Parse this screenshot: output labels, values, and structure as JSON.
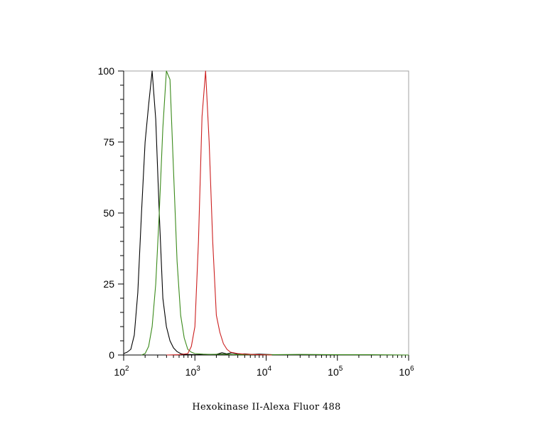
{
  "chart_data": {
    "type": "line",
    "title": "",
    "xlabel": "Hexokinase II-Alexa Fluor 488",
    "ylabel": "",
    "x_scale": "log",
    "xlim": [
      100,
      1000000
    ],
    "ylim": [
      0,
      100
    ],
    "grid": false,
    "legend": "none",
    "x_ticks": [
      {
        "value": 100,
        "base": "10",
        "exp": "2"
      },
      {
        "value": 1000,
        "base": "10",
        "exp": "3"
      },
      {
        "value": 10000,
        "base": "10",
        "exp": "4"
      },
      {
        "value": 100000,
        "base": "10",
        "exp": "5"
      },
      {
        "value": 1000000,
        "base": "10",
        "exp": "6"
      }
    ],
    "y_ticks": [
      {
        "value": 0,
        "label": "0"
      },
      {
        "value": 25,
        "label": "25"
      },
      {
        "value": 50,
        "label": "50"
      },
      {
        "value": 75,
        "label": "75"
      },
      {
        "value": 100,
        "label": "100"
      }
    ],
    "series": [
      {
        "color": "#000000",
        "points": [
          [
            100,
            0.5
          ],
          [
            112,
            1
          ],
          [
            126,
            2
          ],
          [
            141,
            7
          ],
          [
            158,
            22
          ],
          [
            178,
            50
          ],
          [
            200,
            75
          ],
          [
            224,
            88
          ],
          [
            251,
            100
          ],
          [
            282,
            83
          ],
          [
            316,
            50
          ],
          [
            355,
            20
          ],
          [
            398,
            10
          ],
          [
            447,
            5
          ],
          [
            501,
            2.5
          ],
          [
            562,
            1.2
          ],
          [
            631,
            0.5
          ],
          [
            708,
            0.2
          ],
          [
            1000,
            0.1
          ],
          [
            2000,
            0.2
          ],
          [
            2400,
            0.8
          ],
          [
            2800,
            0.4
          ],
          [
            3300,
            0.8
          ],
          [
            4000,
            0.3
          ],
          [
            5000,
            0.4
          ],
          [
            6300,
            0.2
          ],
          [
            8000,
            0.3
          ],
          [
            10000,
            0.2
          ],
          [
            13000,
            0.1
          ],
          [
            20000,
            0
          ]
        ]
      },
      {
        "color": "#3a8a1a",
        "points": [
          [
            178,
            0
          ],
          [
            200,
            0.5
          ],
          [
            224,
            3
          ],
          [
            251,
            10
          ],
          [
            282,
            25
          ],
          [
            316,
            50
          ],
          [
            355,
            80
          ],
          [
            398,
            100
          ],
          [
            447,
            97
          ],
          [
            501,
            65
          ],
          [
            562,
            33
          ],
          [
            631,
            14
          ],
          [
            708,
            6
          ],
          [
            794,
            2
          ],
          [
            891,
            1
          ],
          [
            1000,
            0.5
          ],
          [
            1300,
            0.3
          ],
          [
            1600,
            0.2
          ],
          [
            2500,
            0.3
          ],
          [
            4000,
            0.1
          ],
          [
            10000,
            0.1
          ],
          [
            30000,
            0.2
          ],
          [
            100000,
            0.1
          ],
          [
            300000,
            0.1
          ],
          [
            1000000,
            0
          ]
        ]
      },
      {
        "color": "#cc1f1f",
        "points": [
          [
            400,
            0
          ],
          [
            600,
            0.1
          ],
          [
            794,
            0.5
          ],
          [
            891,
            3
          ],
          [
            1000,
            10
          ],
          [
            1122,
            40
          ],
          [
            1259,
            84
          ],
          [
            1413,
            100
          ],
          [
            1585,
            75
          ],
          [
            1778,
            40
          ],
          [
            2000,
            14
          ],
          [
            2239,
            8
          ],
          [
            2512,
            4
          ],
          [
            2818,
            2
          ],
          [
            3162,
            1
          ],
          [
            3981,
            0.5
          ],
          [
            5012,
            0.3
          ],
          [
            6310,
            0.2
          ],
          [
            7943,
            0.1
          ],
          [
            12000,
            0
          ]
        ]
      }
    ]
  }
}
